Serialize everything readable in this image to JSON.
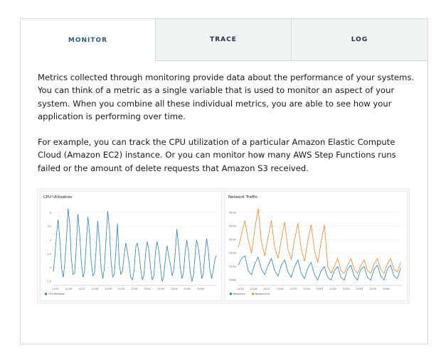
{
  "tabs": [
    {
      "label": "MONITOR",
      "active": true
    },
    {
      "label": "TRACE",
      "active": false
    },
    {
      "label": "LOG",
      "active": false
    }
  ],
  "paragraphs": [
    "Metrics collected through monitoring provide data about the performance of your systems. You can think of a metric as a single variable that is used to monitor an aspect of your system. When you combine all these individual metrics, you are able to see how your application is performing over time.",
    "For example, you can track the CPU utilization of a particular Amazon Elastic Compute Cloud (Amazon EC2) instance. Or you can monitor how many AWS Step Functions runs failed or the amount of delete requests that Amazon S3 received."
  ],
  "colors": {
    "accent_tab": "#2e5c7a",
    "series_blue": "#2e7fba",
    "series_orange": "#f0852d",
    "grid": "#e9ebed"
  },
  "chart_data": [
    {
      "type": "line",
      "title": "CPU Utilization",
      "yticks": [
        "4",
        "3.5",
        "3",
        "2.5",
        "2",
        "1.5"
      ],
      "ylim": [
        1.35,
        4.3
      ],
      "xticks": [
        "11/25",
        "11/26",
        "11/27",
        "11/28",
        "11/29",
        "11/30",
        "12/01",
        "12/02",
        "12/03",
        "12/04",
        "12/05",
        "12/06"
      ],
      "xlim": [
        0,
        12.4
      ],
      "series": [
        {
          "name": "CPUUtilization",
          "color": "#2e7fba",
          "x": [
            0,
            0.12,
            0.25,
            0.36,
            0.5,
            0.62,
            0.75,
            0.86,
            1.0,
            1.12,
            1.25,
            1.36,
            1.5,
            1.62,
            1.75,
            1.86,
            2.0,
            2.12,
            2.25,
            2.36,
            2.5,
            2.62,
            2.75,
            2.86,
            3.0,
            3.12,
            3.25,
            3.36,
            3.5,
            3.62,
            3.75,
            3.86,
            4.0,
            4.12,
            4.25,
            4.36,
            4.5,
            4.62,
            4.75,
            4.86,
            5.0,
            5.12,
            5.25,
            5.36,
            5.5,
            5.62,
            5.75,
            5.86,
            6.0,
            6.12,
            6.25,
            6.36,
            6.5,
            6.62,
            6.75,
            6.86,
            7.0,
            7.12,
            7.25,
            7.36,
            7.5,
            7.62,
            7.75,
            7.86,
            8.0,
            8.12,
            8.25,
            8.36,
            8.5,
            8.62,
            8.75,
            8.86,
            9.0,
            9.12,
            9.25,
            9.36,
            9.5,
            9.62,
            9.75,
            9.86,
            10.0,
            10.12,
            10.25,
            10.36,
            10.5,
            10.62,
            10.75,
            10.86,
            11.0,
            11.12,
            11.25,
            11.36,
            11.5,
            11.62,
            11.75,
            11.86,
            12.0,
            12.12,
            12.25,
            12.36
          ],
          "values": [
            1.85,
            2.45,
            3.25,
            3.75,
            2.95,
            2.0,
            1.65,
            2.1,
            3.1,
            4.15,
            3.55,
            2.35,
            1.75,
            1.8,
            2.85,
            3.95,
            3.2,
            2.2,
            1.65,
            1.85,
            2.9,
            3.85,
            3.25,
            2.25,
            1.7,
            1.8,
            2.75,
            3.7,
            2.95,
            2.0,
            1.6,
            1.95,
            3.1,
            4.05,
            3.45,
            2.3,
            1.65,
            1.75,
            2.7,
            3.6,
            2.1,
            1.75,
            1.9,
            2.45,
            2.9,
            2.55,
            2.15,
            1.65,
            1.55,
            1.9,
            2.75,
            2.9,
            2.5,
            1.95,
            1.55,
            1.7,
            2.55,
            2.95,
            2.6,
            2.0,
            1.55,
            1.7,
            2.6,
            2.95,
            2.6,
            2.0,
            1.5,
            1.65,
            2.35,
            2.8,
            2.4,
            2.15,
            1.7,
            1.9,
            2.6,
            3.4,
            2.75,
            2.0,
            1.6,
            1.8,
            2.6,
            3.0,
            2.55,
            1.9,
            1.5,
            1.7,
            2.5,
            3.0,
            2.7,
            2.2,
            1.6,
            1.75,
            2.55,
            3.05,
            2.6,
            1.95,
            1.6,
            1.9,
            2.3,
            2.45
          ]
        }
      ]
    },
    {
      "type": "line",
      "title": "Network Traffic",
      "yticks": [
        "30.0G",
        "25.0G",
        "20.0G",
        "15.0G",
        "10.0G",
        "5.00G"
      ],
      "ylim": [
        3.0,
        33.0
      ],
      "xticks": [
        "11/25",
        "11/26",
        "11/27",
        "11/28",
        "11/29",
        "11/30",
        "12/01",
        "12/02",
        "12/03",
        "12/04",
        "12/05",
        "12/06"
      ],
      "xlim": [
        0,
        12.4
      ],
      "series": [
        {
          "name": "NetworkIn",
          "color": "#2e7fba",
          "x": [
            0,
            0.25,
            0.5,
            0.75,
            1.0,
            1.25,
            1.5,
            1.75,
            2.0,
            2.25,
            2.5,
            2.75,
            3.0,
            3.25,
            3.5,
            3.75,
            4.0,
            4.25,
            4.5,
            4.75,
            5.0,
            5.25,
            5.5,
            5.75,
            6.0,
            6.25,
            6.5,
            6.75,
            7.0,
            7.25,
            7.5,
            7.75,
            8.0,
            8.25,
            8.5,
            8.75,
            9.0,
            9.25,
            9.5,
            9.75,
            10.0,
            10.25,
            10.5,
            10.75,
            11.0,
            11.25,
            11.5,
            11.75,
            12.0,
            12.25
          ],
          "values": [
            10.5,
            13.0,
            14.0,
            8.5,
            7.0,
            11.0,
            13.5,
            9.0,
            7.0,
            10.5,
            13.0,
            8.5,
            6.5,
            10.5,
            12.5,
            8.0,
            6.0,
            10.0,
            12.5,
            7.5,
            5.5,
            9.5,
            11.5,
            7.0,
            5.0,
            8.5,
            10.0,
            6.0,
            5.0,
            8.5,
            10.0,
            6.0,
            5.0,
            9.0,
            10.5,
            6.5,
            5.0,
            9.0,
            10.0,
            6.0,
            5.0,
            9.0,
            10.5,
            6.5,
            5.0,
            9.0,
            10.5,
            6.5,
            5.5,
            9.5
          ]
        },
        {
          "name": "NetworkOut",
          "color": "#f0852d",
          "x": [
            0,
            0.25,
            0.5,
            0.75,
            1.0,
            1.25,
            1.5,
            1.75,
            2.0,
            2.25,
            2.5,
            2.75,
            3.0,
            3.25,
            3.5,
            3.75,
            4.0,
            4.25,
            4.5,
            4.75,
            5.0,
            5.25,
            5.5,
            5.75,
            6.0,
            6.25,
            6.5,
            6.75,
            7.0,
            7.25,
            7.5,
            7.75,
            8.0,
            8.25,
            8.5,
            8.75,
            9.0,
            9.25,
            9.5,
            9.75,
            10.0,
            10.25,
            10.5,
            10.75,
            11.0,
            11.25,
            11.5,
            11.75,
            12.0,
            12.25
          ],
          "values": [
            17.0,
            22.0,
            27.0,
            20.0,
            15.0,
            24.0,
            31.5,
            19.0,
            14.0,
            21.0,
            27.0,
            17.0,
            13.0,
            20.0,
            26.5,
            16.5,
            12.5,
            20.0,
            26.0,
            16.5,
            12.0,
            19.5,
            25.5,
            16.0,
            11.5,
            19.0,
            25.5,
            10.0,
            7.5,
            10.0,
            13.0,
            8.5,
            7.5,
            10.5,
            13.0,
            9.0,
            7.5,
            10.5,
            12.5,
            8.5,
            7.5,
            11.0,
            13.0,
            9.0,
            7.5,
            11.0,
            13.0,
            9.0,
            8.0,
            11.5
          ]
        }
      ]
    }
  ]
}
